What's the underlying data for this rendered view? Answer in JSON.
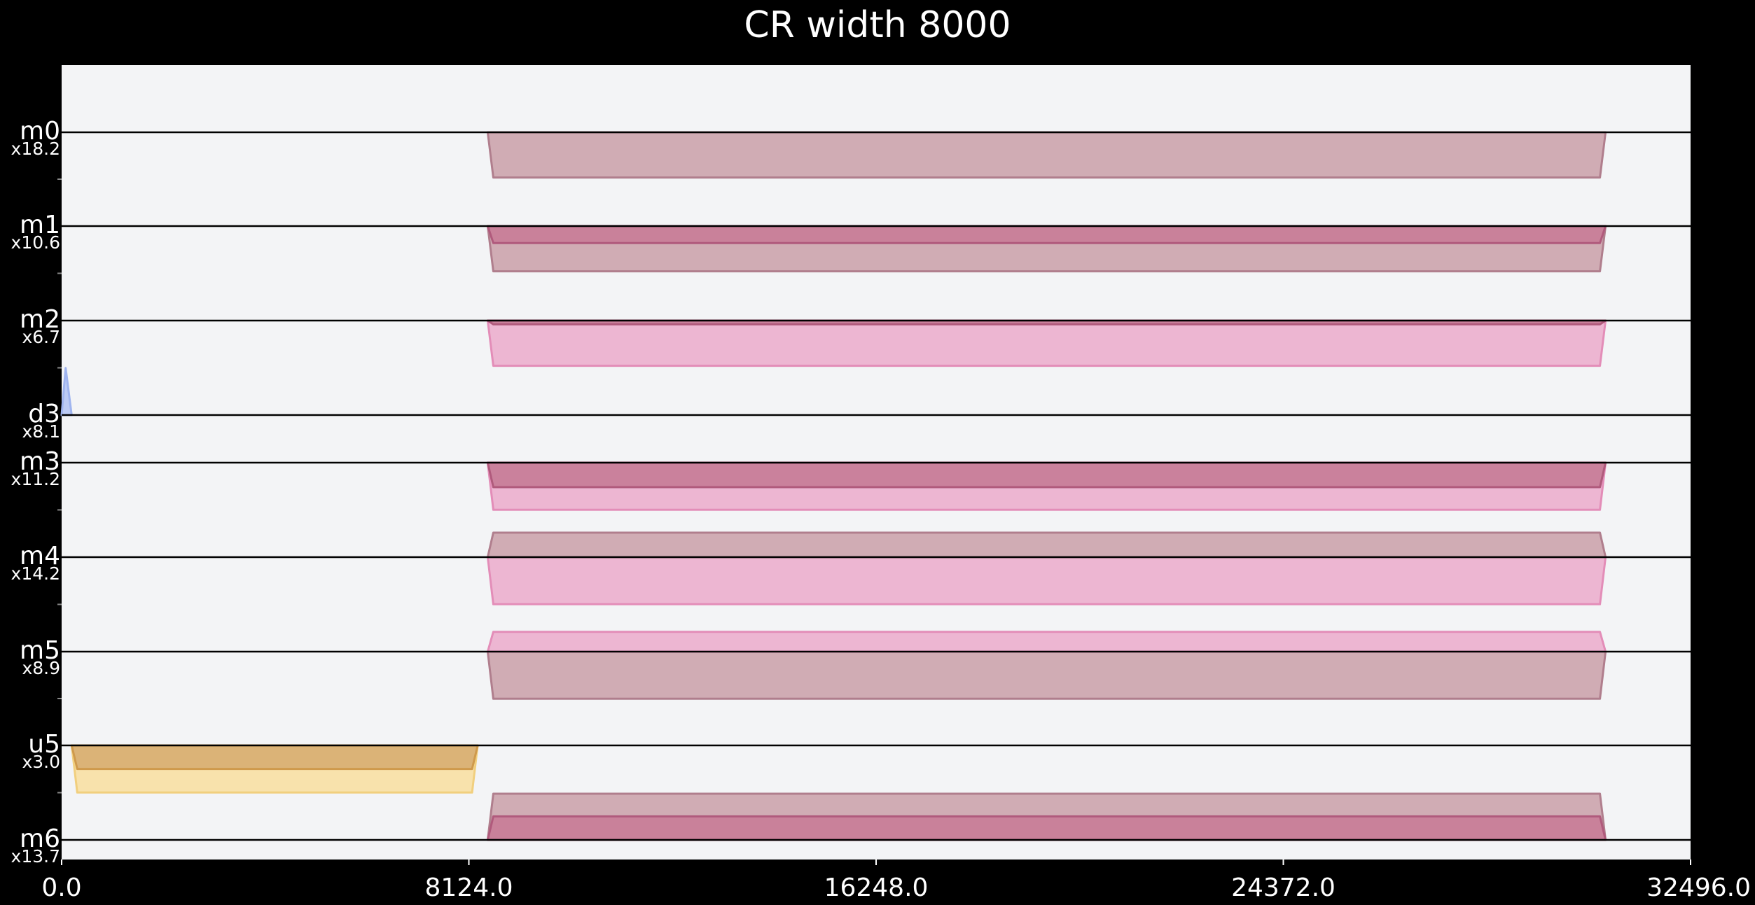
{
  "chart_data": {
    "type": "area",
    "title": "CR width 8000",
    "xlim": [
      0,
      32496
    ],
    "xticks": [
      "0.0",
      "8124.0",
      "16248.0",
      "24372.0",
      "32496.0"
    ],
    "grid": false,
    "colors": {
      "background": "#000000",
      "plot_background": "#f3f4f6",
      "mauve_fill": "#cda8b0",
      "mauve_edge": "#b07e8d",
      "rose_fill": "#c87e99",
      "rose_edge": "#b05a7c",
      "pink_fill": "#ecb2d0",
      "pink_edge": "#e38db8",
      "blue_fill": "#b8c8f4",
      "blue_edge": "#9fb4ef",
      "amber_fill": "#d9b074",
      "amber_edge": "#cf9a4c",
      "lightamber_fill": "#f8e0a8",
      "lightamber_edge": "#f1cf7e",
      "baseline": "#000000"
    },
    "rows": [
      {
        "name": "m0",
        "scale": "x18.2",
        "traces": [
          {
            "color": "mauve",
            "dir": "down",
            "offset": 0,
            "depth": 0.48,
            "x_start": 8500,
            "x_end": 30800
          }
        ]
      },
      {
        "name": "m1",
        "scale": "x10.6",
        "traces": [
          {
            "color": "mauve",
            "dir": "down",
            "offset": 0,
            "depth": 0.48,
            "x_start": 8500,
            "x_end": 30800
          },
          {
            "color": "rose",
            "dir": "down",
            "offset": 0,
            "depth": 0.18,
            "x_start": 8500,
            "x_end": 30800
          }
        ]
      },
      {
        "name": "m2",
        "scale": "x6.7",
        "traces": [
          {
            "color": "pink",
            "dir": "down",
            "offset": 0,
            "depth": 0.48,
            "x_start": 8500,
            "x_end": 30800
          },
          {
            "color": "rose",
            "dir": "down",
            "offset": 0,
            "depth": 0.04,
            "x_start": 8500,
            "x_end": 30800
          }
        ]
      },
      {
        "name": "d3",
        "scale": "x8.1",
        "traces": [
          {
            "color": "blue",
            "dir": "up",
            "offset": 0,
            "depth": 0.5,
            "x_start": 0,
            "x_end": 200,
            "spike": true
          }
        ]
      },
      {
        "name": "m3",
        "scale": "x11.2",
        "traces": [
          {
            "color": "pink",
            "dir": "down",
            "offset": 0,
            "depth": 0.5,
            "x_start": 8500,
            "x_end": 30800
          },
          {
            "color": "rose",
            "dir": "down",
            "offset": 0,
            "depth": 0.26,
            "x_start": 8500,
            "x_end": 30800
          }
        ]
      },
      {
        "name": "m4",
        "scale": "x14.2",
        "traces": [
          {
            "color": "pink",
            "dir": "down",
            "offset": 0,
            "depth": 0.5,
            "x_start": 8500,
            "x_end": 30800
          },
          {
            "color": "mauve",
            "dir": "up",
            "offset": 0,
            "depth": 0.26,
            "x_start": 8500,
            "x_end": 30800
          }
        ]
      },
      {
        "name": "m5",
        "scale": "x8.9",
        "traces": [
          {
            "color": "mauve",
            "dir": "down",
            "offset": 0,
            "depth": 0.5,
            "x_start": 8500,
            "x_end": 30800
          },
          {
            "color": "pink",
            "dir": "up",
            "offset": 0,
            "depth": 0.21,
            "x_start": 8500,
            "x_end": 30800
          }
        ]
      },
      {
        "name": "u5",
        "scale": "x3.0",
        "traces": [
          {
            "color": "lightamber",
            "dir": "down",
            "offset": 0,
            "depth": 0.5,
            "x_start": 200,
            "x_end": 8300
          },
          {
            "color": "amber",
            "dir": "down",
            "offset": 0,
            "depth": 0.25,
            "x_start": 200,
            "x_end": 8300
          }
        ]
      },
      {
        "name": "m6",
        "scale": "x13.7",
        "traces": [
          {
            "color": "mauve",
            "dir": "up",
            "offset": 0,
            "depth": 0.49,
            "x_start": 8500,
            "x_end": 30800
          },
          {
            "color": "rose",
            "dir": "up",
            "offset": 0,
            "depth": 0.25,
            "x_start": 8500,
            "x_end": 30800
          }
        ]
      }
    ]
  }
}
